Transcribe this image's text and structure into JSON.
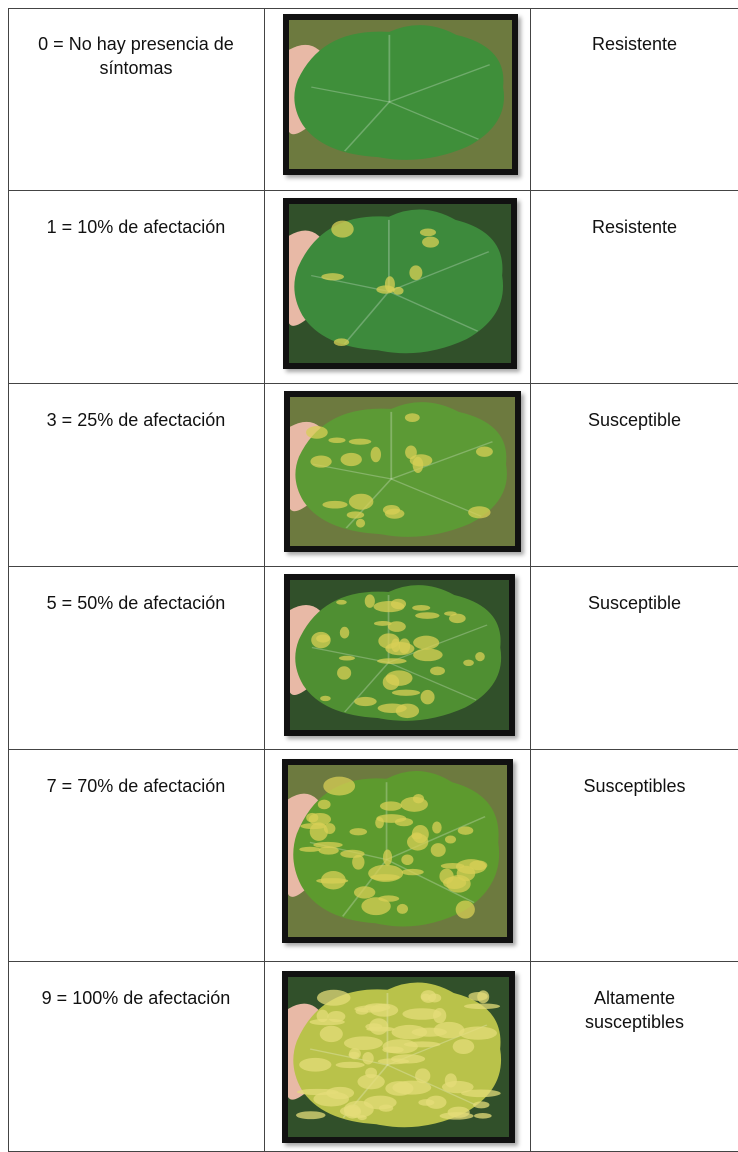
{
  "table": {
    "rows": [
      [
        "0 = No hay presencia de síntomas",
        "Resistente"
      ],
      [
        "1 = 10% de afectación",
        "Resistente"
      ],
      [
        "3 = 25% de afectación",
        "Susceptible"
      ],
      [
        "5 = 50% de afectación",
        "Susceptible"
      ],
      [
        "7 = 70% de afectación",
        "Susceptibles"
      ],
      [
        "9 = 100% de afectación",
        "Altamente susceptibles"
      ]
    ]
  }
}
